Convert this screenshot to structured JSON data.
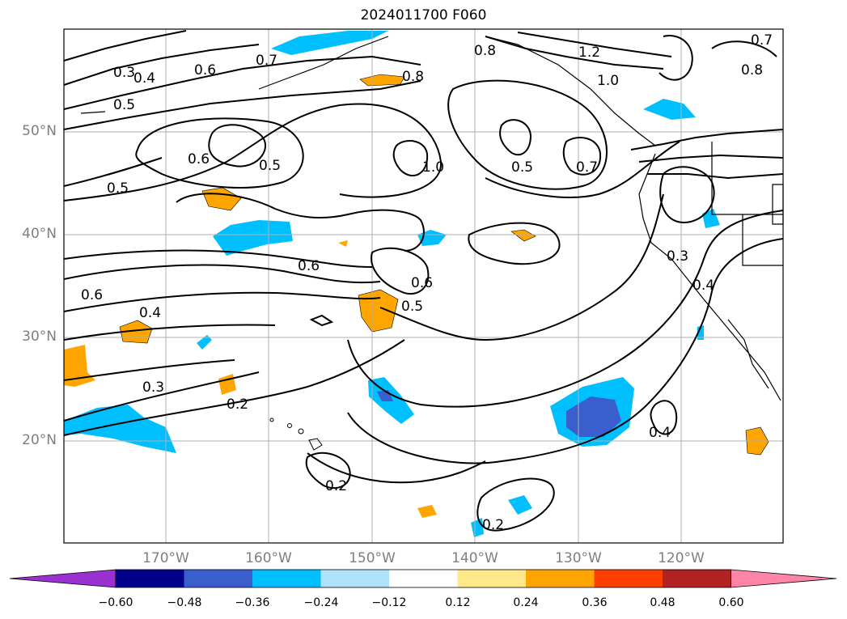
{
  "title": "2024011700 F060",
  "lat_labels": [
    "50°N",
    "40°N",
    "30°N",
    "20°N"
  ],
  "lon_labels": [
    "170°W",
    "160°W",
    "150°W",
    "140°W",
    "130°W",
    "120°W"
  ],
  "contour_labels": [
    "0.3",
    "0.4",
    "0.5",
    "0.6",
    "0.7",
    "0.8",
    "1.2",
    "1.0",
    "0.8",
    "0.7",
    "0.8",
    "0.6",
    "0.5",
    "1.0",
    "0.5",
    "0.7",
    "0.5",
    "0.6",
    "0.6",
    "0.5",
    "0.4",
    "0.6",
    "0.3",
    "0.2",
    "0.2",
    "0.2",
    "0.3",
    "0.4",
    "0.4"
  ],
  "colorbar": {
    "ticks": [
      "−0.60",
      "−0.48",
      "−0.36",
      "−0.24",
      "−0.12",
      "0.12",
      "0.24",
      "0.36",
      "0.48",
      "0.60"
    ],
    "colors": [
      "#9b30d0",
      "#00008b",
      "#3a5fcd",
      "#00bfff",
      "#aee3fa",
      "#ffffff",
      "#ffe88a",
      "#ffa500",
      "#ff3f00",
      "#b22222",
      "#ff85a8"
    ]
  },
  "colors": {
    "negative_mid": "#00bfff",
    "negative_strong": "#3a5fcd",
    "positive_mid": "#ffa500",
    "positive_light": "#ffe88a",
    "grid": "#b0b0b0"
  }
}
